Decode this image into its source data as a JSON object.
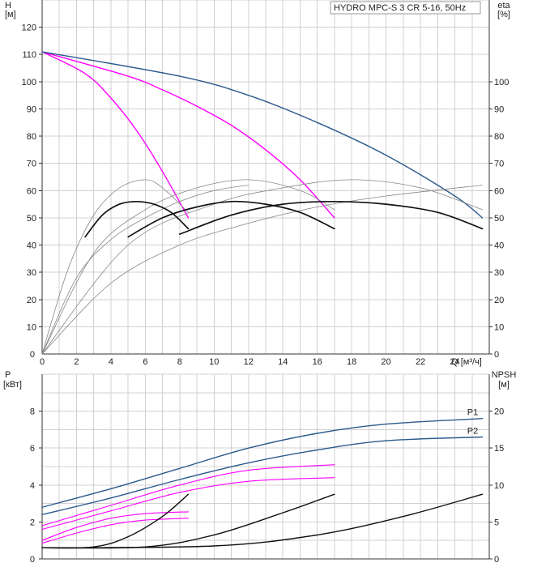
{
  "chart_data": [
    {
      "type": "line",
      "title": "HYDRO MPC-S 3 CR 5-16, 50Hz",
      "xlabel": "Q [м³/ч]",
      "ylabel": "H\n[м]",
      "y2label": "eta\n[%]",
      "xlim": [
        0,
        26
      ],
      "ylim": [
        0,
        130
      ],
      "y2lim": [
        0,
        130
      ],
      "x_ticks": [
        0,
        2,
        4,
        6,
        8,
        10,
        12,
        14,
        16,
        18,
        20,
        22,
        24
      ],
      "y_ticks": [
        0,
        10,
        20,
        30,
        40,
        50,
        60,
        70,
        80,
        90,
        100,
        110,
        120
      ],
      "y2_ticks": [
        0,
        10,
        20,
        30,
        40,
        50,
        60,
        70,
        80,
        90,
        100
      ],
      "grid": true,
      "series": [
        {
          "role": "head",
          "color": "#ff00ff",
          "x": [
            0,
            2.5,
            4,
            5.5,
            7,
            8.5
          ],
          "y": [
            111,
            103,
            94,
            82,
            67,
            50
          ]
        },
        {
          "role": "head",
          "color": "#ff00ff",
          "x": [
            0,
            5,
            7,
            9,
            11,
            13,
            15,
            17
          ],
          "y": [
            111,
            102,
            97,
            91,
            84,
            75,
            64,
            50
          ]
        },
        {
          "role": "head",
          "color": "#2b5a8c",
          "x": [
            0,
            8,
            12,
            16,
            20,
            24,
            25.6
          ],
          "y": [
            111,
            102,
            95,
            85,
            73,
            58,
            50
          ]
        },
        {
          "role": "efficiency",
          "color": "#888888",
          "x": [
            0,
            1.5,
            3,
            4.5,
            6,
            7,
            8.5
          ],
          "y": [
            0,
            31,
            51,
            61,
            64,
            61,
            52
          ]
        },
        {
          "role": "efficiency",
          "color": "#888888",
          "x": [
            0,
            3,
            6,
            9,
            12,
            15,
            17
          ],
          "y": [
            0,
            37,
            53,
            61,
            64,
            60,
            53
          ]
        },
        {
          "role": "efficiency",
          "color": "#888888",
          "x": [
            0,
            5,
            10,
            14,
            18,
            22,
            25.6
          ],
          "y": [
            0,
            40,
            55,
            61,
            64,
            61,
            53
          ]
        },
        {
          "role": "efficiency",
          "color": "#888888",
          "x": [
            0,
            2,
            4,
            6,
            8,
            10,
            12
          ],
          "y": [
            0,
            28,
            42,
            50,
            56,
            60,
            62
          ]
        },
        {
          "role": "efficiency",
          "color": "#888888",
          "x": [
            0,
            4,
            8,
            12,
            16,
            20,
            25.6
          ],
          "y": [
            0,
            26,
            40,
            48,
            54,
            58,
            62
          ]
        },
        {
          "role": "efficiency-bold",
          "color": "#111111",
          "x": [
            2.5,
            3.5,
            4.5,
            5.5,
            6.5,
            7.5,
            8.5
          ],
          "y": [
            43,
            51,
            55,
            56,
            55,
            52,
            46
          ]
        },
        {
          "role": "efficiency-bold",
          "color": "#111111",
          "x": [
            5,
            7,
            9,
            11,
            13,
            15,
            17
          ],
          "y": [
            43,
            50,
            54,
            56,
            55,
            52,
            46
          ]
        },
        {
          "role": "efficiency-bold",
          "color": "#111111",
          "x": [
            8,
            11,
            14,
            17,
            20,
            23,
            25.6
          ],
          "y": [
            44,
            51,
            55,
            56,
            55,
            52,
            46
          ]
        }
      ]
    },
    {
      "type": "line",
      "ylabel": "P\n[кВт]",
      "y2label": "NPSH\n[м]",
      "xlim": [
        0,
        26
      ],
      "ylim": [
        0,
        10
      ],
      "y2lim": [
        0,
        25
      ],
      "y_ticks": [
        0,
        2,
        4,
        6,
        8
      ],
      "y2_ticks": [
        0,
        5,
        10,
        15,
        20
      ],
      "grid": true,
      "series": [
        {
          "name": "P1",
          "role": "power",
          "color": "#2b5a8c",
          "x": [
            0,
            4,
            8,
            12,
            16,
            20,
            25.6
          ],
          "y": [
            2.8,
            3.8,
            4.9,
            6.0,
            6.8,
            7.3,
            7.6
          ]
        },
        {
          "name": "P2",
          "role": "power",
          "color": "#2b5a8c",
          "x": [
            0,
            4,
            8,
            12,
            16,
            20,
            25.6
          ],
          "y": [
            2.4,
            3.3,
            4.3,
            5.2,
            5.9,
            6.4,
            6.6
          ]
        },
        {
          "role": "power",
          "color": "#ff00ff",
          "x": [
            0,
            4,
            8,
            12,
            17
          ],
          "y": [
            1.8,
            2.9,
            4.0,
            4.8,
            5.1
          ]
        },
        {
          "role": "power",
          "color": "#ff00ff",
          "x": [
            0,
            4,
            8,
            12,
            17
          ],
          "y": [
            1.6,
            2.6,
            3.6,
            4.2,
            4.4
          ]
        },
        {
          "role": "power",
          "color": "#ff00ff",
          "x": [
            0,
            2,
            4,
            6,
            8.5
          ],
          "y": [
            1.0,
            1.7,
            2.2,
            2.45,
            2.55
          ]
        },
        {
          "role": "power",
          "color": "#ff00ff",
          "x": [
            0,
            2,
            4,
            6,
            8.5
          ],
          "y": [
            0.85,
            1.4,
            1.85,
            2.1,
            2.2
          ]
        },
        {
          "role": "npsh",
          "color": "#111111",
          "x": [
            0,
            3,
            5,
            7,
            8.5
          ],
          "y": [
            0.6,
            0.65,
            1.2,
            2.3,
            3.5
          ]
        },
        {
          "role": "npsh",
          "color": "#111111",
          "x": [
            0,
            6,
            10,
            14,
            17
          ],
          "y": [
            0.6,
            0.65,
            1.3,
            2.5,
            3.5
          ]
        },
        {
          "role": "npsh",
          "color": "#111111",
          "x": [
            0,
            10,
            16,
            21,
            25.6
          ],
          "y": [
            0.6,
            0.7,
            1.3,
            2.3,
            3.5
          ]
        }
      ]
    }
  ]
}
